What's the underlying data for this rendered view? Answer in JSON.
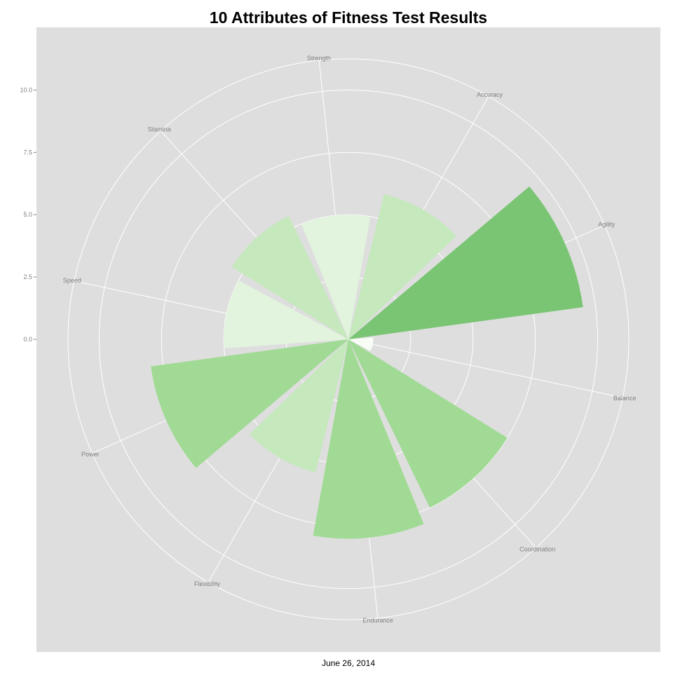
{
  "chart_data": {
    "type": "polar-bar",
    "title": "10 Attributes of Fitness Test Results",
    "xlabel": "June 26, 2014",
    "ylabel": "",
    "ylim": [
      0,
      11.25
    ],
    "yticks": [
      "0.0",
      "2.5",
      "5.0",
      "7.5",
      "10.0"
    ],
    "ytick_values": [
      0,
      2.5,
      5,
      7.5,
      10
    ],
    "grid": true,
    "legend": "none",
    "categories": [
      "Accuracy",
      "Agility",
      "Balance",
      "Coordination",
      "Endurance",
      "Flexibility",
      "Power",
      "Speed",
      "Stamina",
      "Strength"
    ],
    "values": [
      6,
      9.5,
      1,
      7.5,
      8,
      5.5,
      8,
      5,
      5.5,
      5
    ],
    "colors": [
      "#c5e8bd",
      "#7ac574",
      "#f7fcf5",
      "#a1da95",
      "#a1da95",
      "#c5e8bd",
      "#a1da95",
      "#e2f3de",
      "#c5e8bd",
      "#e2f3de"
    ],
    "panel_color": "#dedede",
    "grid_color": "#ffffff"
  }
}
